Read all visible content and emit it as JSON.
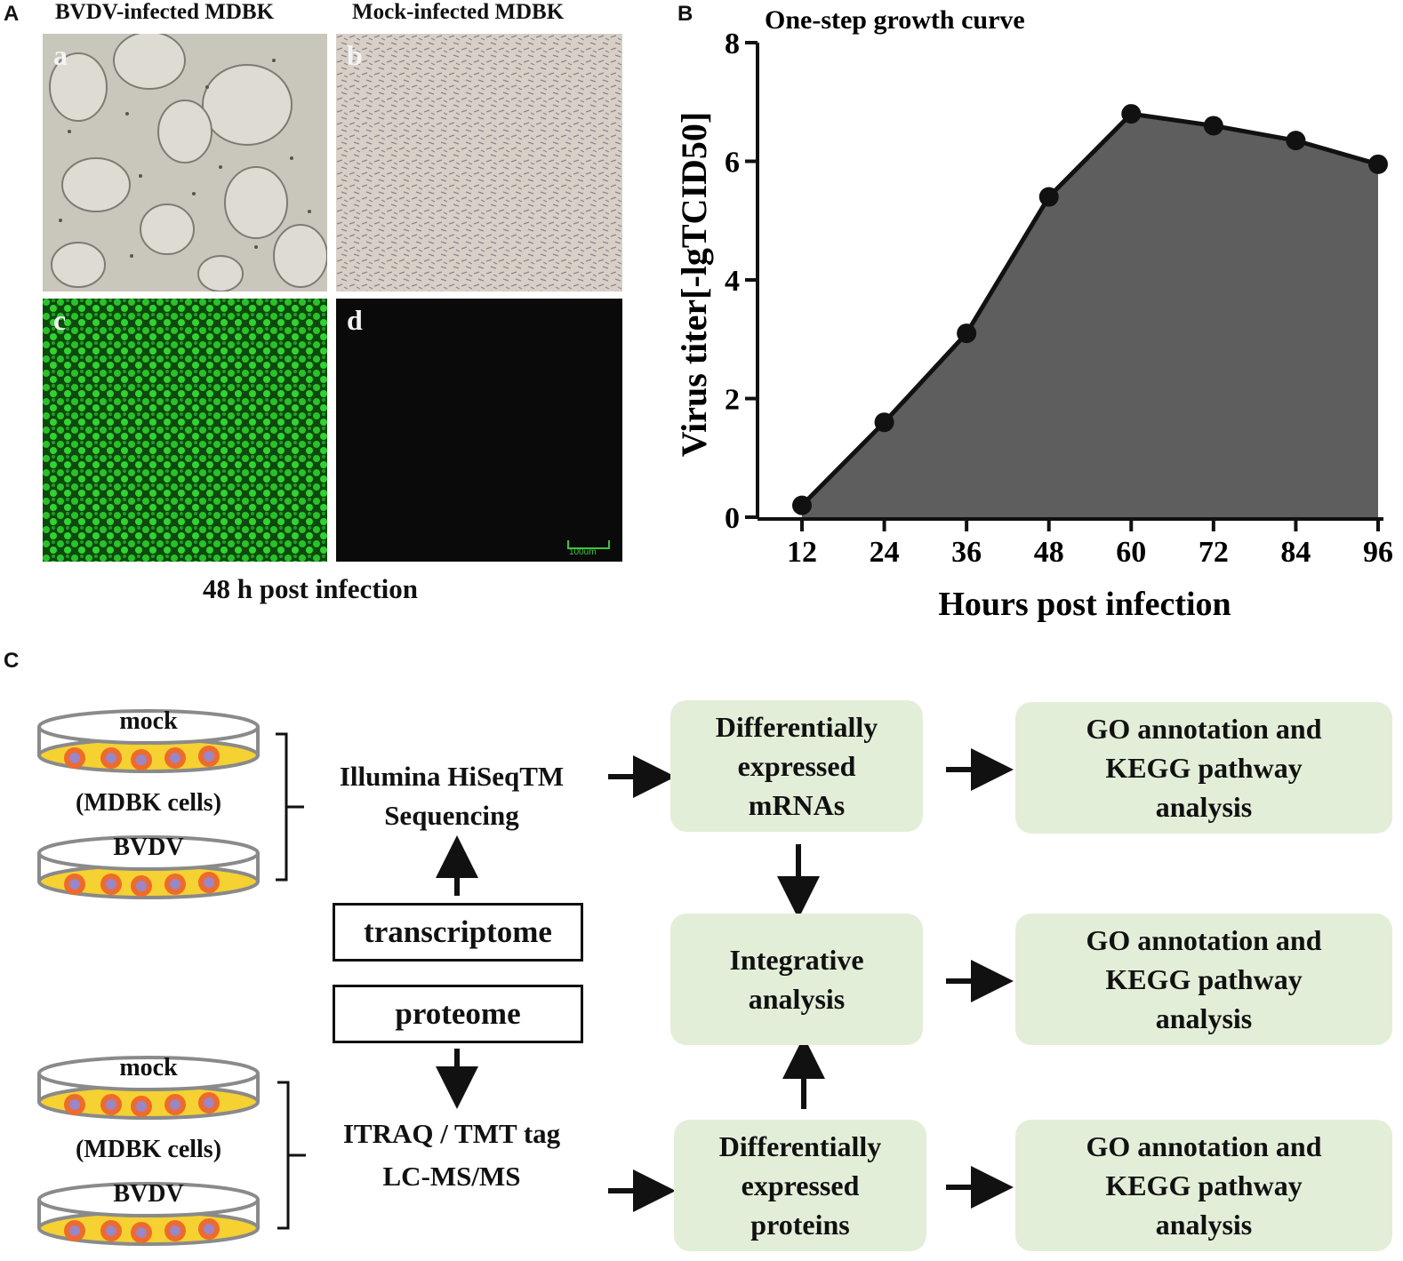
{
  "panelA": {
    "letter": "A",
    "col1_title": "BVDV-infected MDBK",
    "col2_title": "Mock-infected MDBK",
    "img_a_label": "a",
    "img_b_label": "b",
    "img_c_label": "c",
    "img_d_label": "d",
    "scale_bar": "100um",
    "caption": "48 h post infection"
  },
  "panelB": {
    "letter": "B"
  },
  "chart_data": {
    "type": "area",
    "title": "One-step growth curve",
    "xlabel": "Hours post infection",
    "ylabel": "Virus titer[-lgTCID50]",
    "x": [
      12,
      24,
      36,
      48,
      60,
      72,
      84,
      96
    ],
    "y": [
      0.2,
      1.6,
      3.1,
      5.4,
      6.8,
      6.6,
      6.35,
      5.95
    ],
    "xticks": [
      "12",
      "24",
      "36",
      "48",
      "60",
      "72",
      "84",
      "96"
    ],
    "yticks": [
      "0",
      "2",
      "4",
      "6",
      "8"
    ],
    "xlim": [
      12,
      96
    ],
    "ylim": [
      0,
      8
    ],
    "fill_color": "#5e5e5e",
    "grid": false
  },
  "panelC": {
    "letter": "C",
    "dish_top_mock": "mock",
    "cells_top": "(MDBK cells)",
    "dish_top_bvdv": "BVDV",
    "dish_bottom_mock": "mock",
    "cells_bottom": "(MDBK cells)",
    "dish_bottom_bvdv": "BVDV",
    "seq_line1": "Illumina  HiSeqTM",
    "seq_line2": "Sequencing",
    "transcriptome": "transcriptome",
    "proteome": "proteome",
    "itraq_line1": "ITRAQ / TMT  tag",
    "itraq_line2": "LC-MS/MS",
    "box_mrna": "Differentially\nexpressed\nmRNAs",
    "box_integrative": "Integrative\nanalysis",
    "box_proteins": "Differentially\nexpressed\nproteins",
    "box_go1": "GO annotation and\nKEGG pathway\nanalysis",
    "box_go2": "GO annotation and\nKEGG pathway\nanalysis",
    "box_go3": "GO annotation and\nKEGG pathway\nanalysis",
    "box_color": "#e3eed8",
    "dish_medium_color": "#f5d132",
    "cell_color": "#ee6b2c",
    "nucleus_color": "#9a86c8"
  }
}
